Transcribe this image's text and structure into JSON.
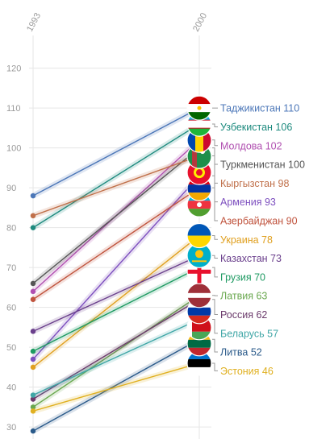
{
  "chart_data": {
    "type": "line",
    "title": "",
    "xlabel": "",
    "ylabel": "",
    "x": [
      "1993",
      "2000"
    ],
    "ylim": [
      27,
      127
    ],
    "yticks": [
      30,
      40,
      50,
      60,
      70,
      80,
      90,
      100,
      110,
      120
    ],
    "grid": true,
    "series": [
      {
        "name": "Таджикистан",
        "values": [
          88,
          110
        ],
        "color": "#4c77b8",
        "label": "Таджикистан 110",
        "flag": "tajikistan-flag-icon"
      },
      {
        "name": "Узбекистан",
        "values": [
          80,
          106
        ],
        "color": "#1d8a7e",
        "label": "Узбекистан 106",
        "flag": "uzbekistan-flag-icon"
      },
      {
        "name": "Молдова",
        "values": [
          64,
          102
        ],
        "color": "#b04fb0",
        "label": "Молдова 102",
        "flag": "moldova-flag-icon"
      },
      {
        "name": "Туркменистан",
        "values": [
          66,
          100
        ],
        "color": "#555555",
        "label": "Туркменистан 100",
        "flag": "turkmenistan-flag-icon"
      },
      {
        "name": "Кыргызстан",
        "values": [
          83,
          98
        ],
        "color": "#c0704a",
        "label": "Кыргызстан 98",
        "flag": "kyrgyzstan-flag-icon"
      },
      {
        "name": "Армения",
        "values": [
          47,
          93
        ],
        "color": "#7d4fbf",
        "label": "Армения 93",
        "flag": "armenia-flag-icon"
      },
      {
        "name": "Азербайджан",
        "values": [
          62,
          90
        ],
        "color": "#c0543e",
        "label": "Азербайджан 90",
        "flag": "azerbaijan-flag-icon"
      },
      {
        "name": "Украина",
        "values": [
          45,
          78
        ],
        "color": "#e0a020",
        "label": "Украина 78",
        "flag": "ukraine-flag-icon"
      },
      {
        "name": "Казахстан",
        "values": [
          54,
          73
        ],
        "color": "#6a3f8c",
        "label": "Казахстан 73",
        "flag": "kazakhstan-flag-icon"
      },
      {
        "name": "Грузия",
        "values": [
          49,
          70
        ],
        "color": "#1e9a62",
        "label": "Грузия 70",
        "flag": "georgia-flag-icon"
      },
      {
        "name": "Латвия",
        "values": [
          35,
          63
        ],
        "color": "#6aa84f",
        "label": "Латвия 63",
        "flag": "latvia-flag-icon"
      },
      {
        "name": "Россия",
        "values": [
          37,
          62
        ],
        "color": "#6b3a6b",
        "label": "Россия 62",
        "flag": "russia-flag-icon"
      },
      {
        "name": "Беларусь",
        "values": [
          38,
          57
        ],
        "color": "#3fa6a6",
        "label": "Беларусь 57",
        "flag": "belarus-flag-icon"
      },
      {
        "name": "Литва",
        "values": [
          29,
          52
        ],
        "color": "#2a5a8a",
        "label": "Литва 52",
        "flag": "lithuania-flag-icon"
      },
      {
        "name": "Эстония",
        "values": [
          34,
          46
        ],
        "color": "#e0b020",
        "label": "Эстония 46",
        "flag": "estonia-flag-icon"
      }
    ]
  }
}
